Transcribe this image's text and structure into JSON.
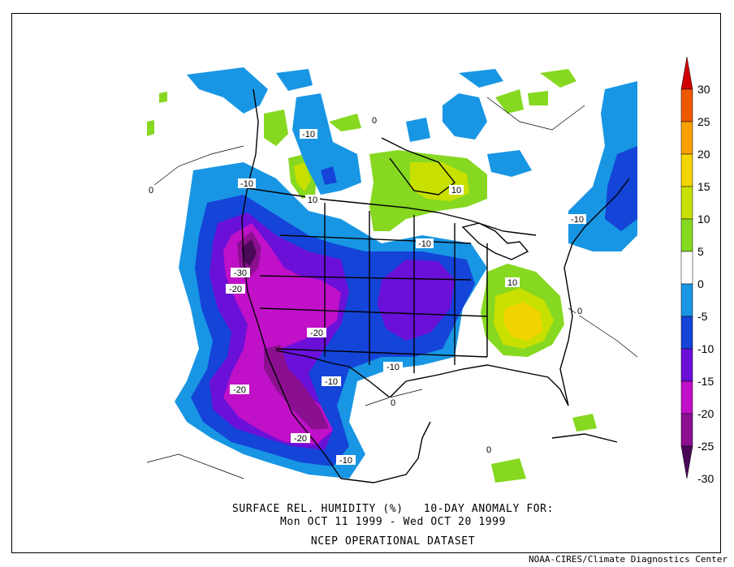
{
  "title": {
    "line1": "SURFACE REL. HUMIDITY (%)   10-DAY ANOMALY FOR:",
    "line2": "Mon OCT 11 1999 - Wed OCT 20 1999",
    "line3": "NCEP OPERATIONAL DATASET"
  },
  "credit": "NOAA-CIRES/Climate Diagnostics Center",
  "colorbar": {
    "levels": [
      30,
      25,
      20,
      15,
      10,
      5,
      0,
      -5,
      -10,
      -15,
      -20,
      -25,
      -30
    ],
    "colors": {
      "gt30": "#d10000",
      "25_30": "#f05800",
      "20_25": "#f8a000",
      "15_20": "#f2d400",
      "10_15": "#c8e000",
      "5_10": "#86d820",
      "neg5_5": "#ffffff",
      "neg10_neg5": "#1896e4",
      "neg15_neg10": "#1444d8",
      "neg20_neg15": "#6a10d8",
      "neg25_neg20": "#c010c8",
      "neg30_neg25": "#8a1090",
      "lt_neg30": "#4a0858"
    }
  },
  "contour_labels": [
    {
      "text": "-10"
    },
    {
      "text": "-10"
    },
    {
      "text": "0"
    },
    {
      "text": "10"
    },
    {
      "text": "10"
    },
    {
      "text": "-10"
    },
    {
      "text": "-10"
    },
    {
      "text": "-30"
    },
    {
      "text": "-20"
    },
    {
      "text": "-20"
    },
    {
      "text": "10"
    },
    {
      "text": "-10"
    },
    {
      "text": "-10"
    },
    {
      "text": "-20"
    },
    {
      "text": "-20"
    },
    {
      "text": "-10"
    },
    {
      "text": "0"
    },
    {
      "text": "0"
    },
    {
      "text": "0"
    },
    {
      "text": "0"
    }
  ]
}
